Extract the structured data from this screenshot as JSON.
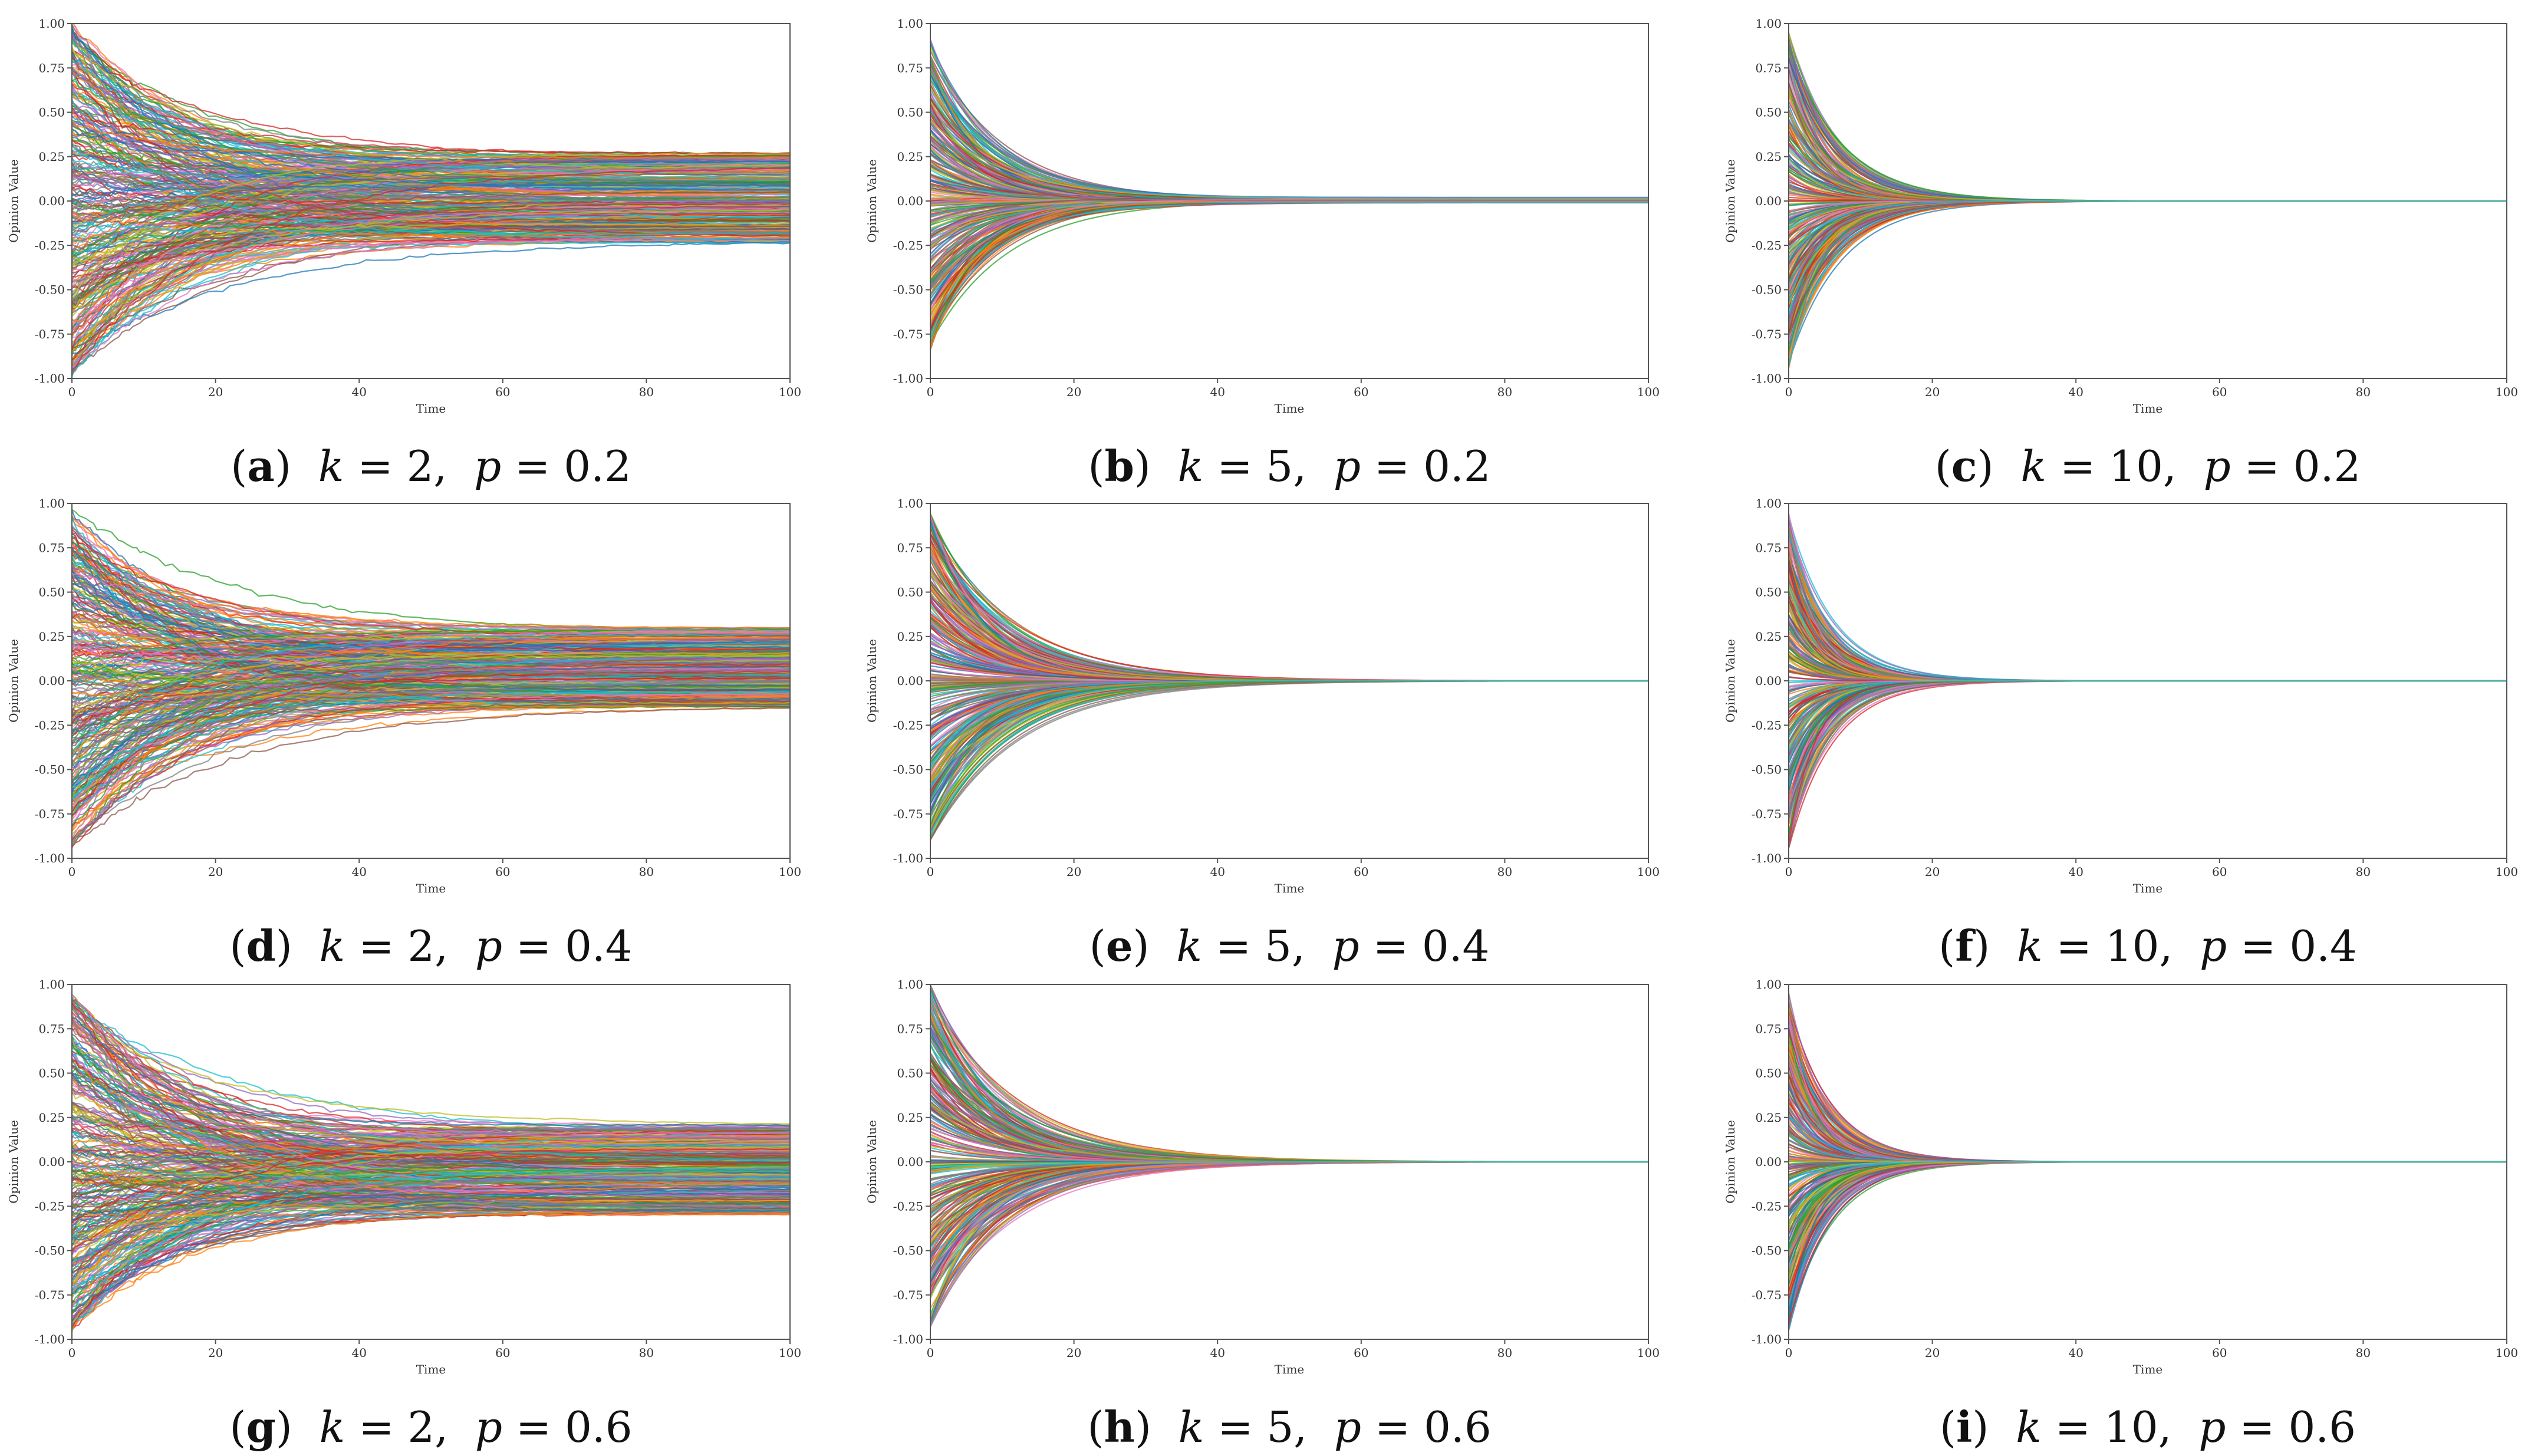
{
  "chart_data": [
    {
      "id": "a",
      "label_letter": "a",
      "k": "2",
      "p": "0.2",
      "k_value": 2,
      "p_value": 0.2,
      "type": "line",
      "xlabel": "Time",
      "ylabel": "Opinion Value",
      "xlim": [
        0,
        100
      ],
      "ylim": [
        -1,
        1
      ],
      "xticks": [
        "0",
        "20",
        "40",
        "60",
        "80",
        "100"
      ],
      "yticks": [
        "-1.00",
        "-0.75",
        "-0.50",
        "-0.25",
        "0.00",
        "0.25",
        "0.50",
        "0.75",
        "1.00"
      ],
      "final_spread": [
        -0.24,
        0.27
      ],
      "converge_time": 100,
      "initial_range": [
        -1,
        1
      ],
      "grid": false,
      "legend": "none"
    },
    {
      "id": "b",
      "label_letter": "b",
      "k": "5",
      "p": "0.2",
      "k_value": 5,
      "p_value": 0.2,
      "type": "line",
      "xlabel": "Time",
      "ylabel": "Opinion Value",
      "xlim": [
        0,
        100
      ],
      "ylim": [
        -1,
        1
      ],
      "xticks": [
        "0",
        "20",
        "40",
        "60",
        "80",
        "100"
      ],
      "yticks": [
        "-1.00",
        "-0.75",
        "-0.50",
        "-0.25",
        "0.00",
        "0.25",
        "0.50",
        "0.75",
        "1.00"
      ],
      "final_spread": [
        -0.01,
        0.02
      ],
      "converge_time": 45,
      "initial_range": [
        -0.85,
        0.92
      ],
      "grid": false,
      "legend": "none"
    },
    {
      "id": "c",
      "label_letter": "c",
      "k": "10",
      "p": "0.2",
      "k_value": 10,
      "p_value": 0.2,
      "type": "line",
      "xlabel": "Time",
      "ylabel": "Opinion Value",
      "xlim": [
        0,
        100
      ],
      "ylim": [
        -1,
        1
      ],
      "xticks": [
        "0",
        "20",
        "40",
        "60",
        "80",
        "100"
      ],
      "yticks": [
        "-1.00",
        "-0.75",
        "-0.50",
        "-0.25",
        "0.00",
        "0.25",
        "0.50",
        "0.75",
        "1.00"
      ],
      "final_spread": [
        0.0,
        0.0
      ],
      "converge_time": 30,
      "initial_range": [
        -0.95,
        0.95
      ],
      "grid": false,
      "legend": "none"
    },
    {
      "id": "d",
      "label_letter": "d",
      "k": "2",
      "p": "0.4",
      "k_value": 2,
      "p_value": 0.4,
      "type": "line",
      "xlabel": "Time",
      "ylabel": "Opinion Value",
      "xlim": [
        0,
        100
      ],
      "ylim": [
        -1,
        1
      ],
      "xticks": [
        "0",
        "20",
        "40",
        "60",
        "80",
        "100"
      ],
      "yticks": [
        "-1.00",
        "-0.75",
        "-0.50",
        "-0.25",
        "0.00",
        "0.25",
        "0.50",
        "0.75",
        "1.00"
      ],
      "final_spread": [
        -0.15,
        0.3
      ],
      "converge_time": 100,
      "initial_range": [
        -0.95,
        0.97
      ],
      "grid": false,
      "legend": "none"
    },
    {
      "id": "e",
      "label_letter": "e",
      "k": "5",
      "p": "0.4",
      "k_value": 5,
      "p_value": 0.4,
      "type": "line",
      "xlabel": "Time",
      "ylabel": "Opinion Value",
      "xlim": [
        0,
        100
      ],
      "ylim": [
        -1,
        1
      ],
      "xticks": [
        "0",
        "20",
        "40",
        "60",
        "80",
        "100"
      ],
      "yticks": [
        "-1.00",
        "-0.75",
        "-0.50",
        "-0.25",
        "0.00",
        "0.25",
        "0.50",
        "0.75",
        "1.00"
      ],
      "final_spread": [
        0.0,
        0.0
      ],
      "converge_time": 50,
      "initial_range": [
        -0.9,
        0.95
      ],
      "grid": false,
      "legend": "none"
    },
    {
      "id": "f",
      "label_letter": "f",
      "k": "10",
      "p": "0.4",
      "k_value": 10,
      "p_value": 0.4,
      "type": "line",
      "xlabel": "Time",
      "ylabel": "Opinion Value",
      "xlim": [
        0,
        100
      ],
      "ylim": [
        -1,
        1
      ],
      "xticks": [
        "0",
        "20",
        "40",
        "60",
        "80",
        "100"
      ],
      "yticks": [
        "-1.00",
        "-0.75",
        "-0.50",
        "-0.25",
        "0.00",
        "0.25",
        "0.50",
        "0.75",
        "1.00"
      ],
      "final_spread": [
        0.0,
        0.0
      ],
      "converge_time": 25,
      "initial_range": [
        -0.95,
        0.95
      ],
      "grid": false,
      "legend": "none"
    },
    {
      "id": "g",
      "label_letter": "g",
      "k": "2",
      "p": "0.6",
      "k_value": 2,
      "p_value": 0.6,
      "type": "line",
      "xlabel": "Time",
      "ylabel": "Opinion Value",
      "xlim": [
        0,
        100
      ],
      "ylim": [
        -1,
        1
      ],
      "xticks": [
        "0",
        "20",
        "40",
        "60",
        "80",
        "100"
      ],
      "yticks": [
        "-1.00",
        "-0.75",
        "-0.50",
        "-0.25",
        "0.00",
        "0.25",
        "0.50",
        "0.75",
        "1.00"
      ],
      "final_spread": [
        -0.3,
        0.21
      ],
      "converge_time": 100,
      "initial_range": [
        -0.95,
        0.95
      ],
      "grid": false,
      "legend": "none"
    },
    {
      "id": "h",
      "label_letter": "h",
      "k": "5",
      "p": "0.6",
      "k_value": 5,
      "p_value": 0.6,
      "type": "line",
      "xlabel": "Time",
      "ylabel": "Opinion Value",
      "xlim": [
        0,
        100
      ],
      "ylim": [
        -1,
        1
      ],
      "xticks": [
        "0",
        "20",
        "40",
        "60",
        "80",
        "100"
      ],
      "yticks": [
        "-1.00",
        "-0.75",
        "-0.50",
        "-0.25",
        "0.00",
        "0.25",
        "0.50",
        "0.75",
        "1.00"
      ],
      "final_spread": [
        0.0,
        0.0
      ],
      "converge_time": 50,
      "initial_range": [
        -0.95,
        1.0
      ],
      "grid": false,
      "legend": "none"
    },
    {
      "id": "i",
      "label_letter": "i",
      "k": "10",
      "p": "0.6",
      "k_value": 10,
      "p_value": 0.6,
      "type": "line",
      "xlabel": "Time",
      "ylabel": "Opinion Value",
      "xlim": [
        0,
        100
      ],
      "ylim": [
        -1,
        1
      ],
      "xticks": [
        "0",
        "20",
        "40",
        "60",
        "80",
        "100"
      ],
      "yticks": [
        "-1.00",
        "-0.75",
        "-0.50",
        "-0.25",
        "0.00",
        "0.25",
        "0.50",
        "0.75",
        "1.00"
      ],
      "final_spread": [
        0.0,
        0.0
      ],
      "converge_time": 25,
      "initial_range": [
        -0.95,
        0.97
      ],
      "grid": false,
      "legend": "none"
    }
  ],
  "palette": [
    "#1f77b4",
    "#ff7f0e",
    "#2ca02c",
    "#d62728",
    "#9467bd",
    "#8c564b",
    "#e377c2",
    "#7f7f7f",
    "#bcbd22",
    "#17becf"
  ]
}
